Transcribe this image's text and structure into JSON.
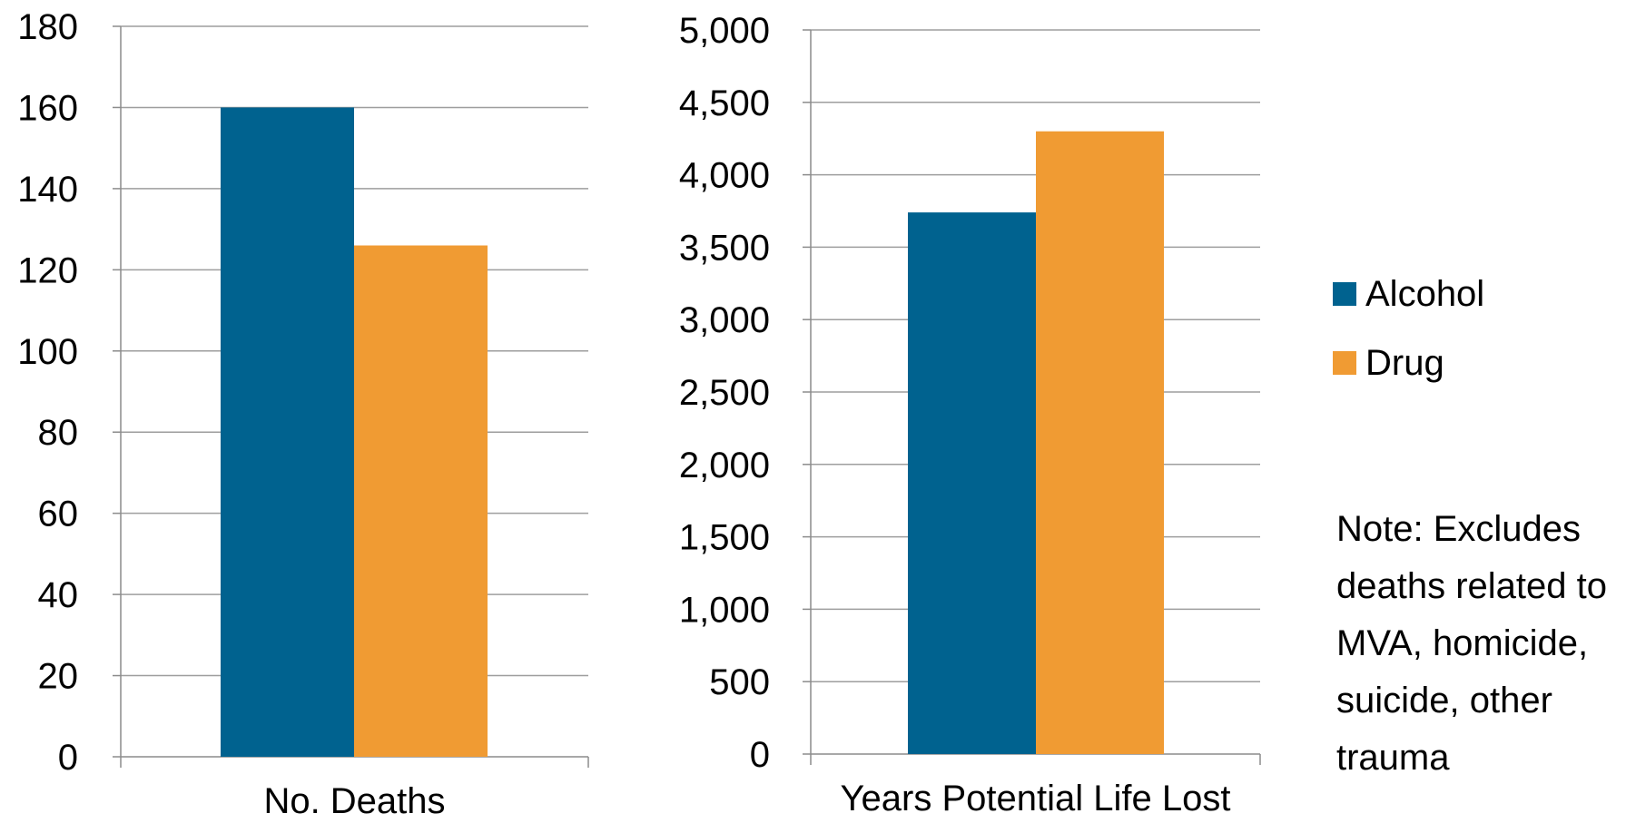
{
  "colors": {
    "alcohol": "#00628F",
    "drug": "#F09B33",
    "grid": "#9E9E9E",
    "axis": "#8C8C8C"
  },
  "legend": [
    {
      "name": "Alcohol",
      "color": "#00628F"
    },
    {
      "name": "Drug",
      "color": "#F09B33"
    }
  ],
  "note": "Note: Excludes deaths related to MVA, homicide, suicide, other trauma",
  "chart_data": [
    {
      "type": "bar",
      "categories": [
        "No. Deaths"
      ],
      "series": [
        {
          "name": "Alcohol",
          "values": [
            160
          ]
        },
        {
          "name": "Drug",
          "values": [
            126
          ]
        }
      ],
      "title": "",
      "xlabel": "",
      "ylabel": "",
      "ylim": [
        0,
        180
      ],
      "yticks": [
        0,
        20,
        40,
        60,
        80,
        100,
        120,
        140,
        160,
        180
      ],
      "ytick_labels": [
        "0",
        "20",
        "40",
        "60",
        "80",
        "100",
        "120",
        "140",
        "160",
        "180"
      ],
      "grid": true,
      "legend": "right"
    },
    {
      "type": "bar",
      "categories": [
        "Years Potential Life Lost"
      ],
      "series": [
        {
          "name": "Alcohol",
          "values": [
            3740
          ]
        },
        {
          "name": "Drug",
          "values": [
            4300
          ]
        }
      ],
      "title": "",
      "xlabel": "",
      "ylabel": "",
      "ylim": [
        0,
        5000
      ],
      "yticks": [
        0,
        500,
        1000,
        1500,
        2000,
        2500,
        3000,
        3500,
        4000,
        4500,
        5000
      ],
      "ytick_labels": [
        "0",
        "500",
        "1,000",
        "1,500",
        "2,000",
        "2,500",
        "3,000",
        "3,500",
        "4,000",
        "4,500",
        "5,000"
      ],
      "grid": true,
      "legend": "right"
    }
  ]
}
